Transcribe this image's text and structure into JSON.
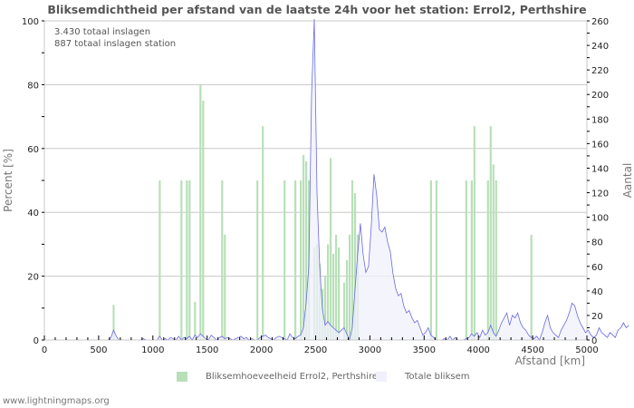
{
  "chart_data": {
    "type": "bar",
    "title": "Bliksemdichtheid per afstand van de laatste 24h voor het station: Errol2, Perthshire",
    "xlabel": "Afstand   [km]",
    "ylabel": "Percent   [%]",
    "y2label": "Aantal",
    "xlim": [
      0,
      5000
    ],
    "ylim": [
      0,
      100
    ],
    "y2lim": [
      0,
      260
    ],
    "xticks": [
      0,
      500,
      1000,
      1500,
      2000,
      2500,
      3000,
      3500,
      4000,
      4500,
      5000
    ],
    "yticks": [
      0,
      20,
      40,
      60,
      80,
      100
    ],
    "y2ticks": [
      0,
      20,
      40,
      60,
      80,
      100,
      120,
      140,
      160,
      180,
      200,
      220,
      240,
      260
    ],
    "grid": true,
    "legend_position": "bottom",
    "bin_width_km": 25,
    "annotations": [
      "3.430 totaal inslagen",
      "887 totaal inslagen station"
    ],
    "series": [
      {
        "name": "Bliksemhoeveelheid Errol2, Perthshire",
        "axis": "left",
        "kind": "bar",
        "color": "#b8e0b8",
        "values": [
          0,
          0,
          0,
          0,
          0,
          0,
          0,
          0,
          0,
          0,
          0,
          0,
          0,
          0,
          0,
          0,
          0,
          0,
          0,
          0,
          0,
          0,
          0,
          0,
          0,
          11,
          0,
          0,
          0,
          0,
          0,
          0,
          0,
          0,
          0,
          0,
          0,
          0,
          0,
          0,
          0,
          0,
          50,
          0,
          0,
          0,
          0,
          0,
          0,
          0,
          50,
          0,
          50,
          50,
          0,
          12,
          0,
          80,
          75,
          0,
          0,
          0,
          0,
          0,
          0,
          50,
          33,
          0,
          0,
          0,
          0,
          0,
          0,
          0,
          0,
          0,
          0,
          0,
          50,
          0,
          67,
          0,
          0,
          0,
          0,
          0,
          0,
          0,
          50,
          0,
          0,
          0,
          50,
          0,
          50,
          58,
          56,
          50,
          0,
          29,
          30,
          24,
          16,
          20,
          30,
          57,
          27,
          33,
          29,
          0,
          18,
          25,
          33,
          50,
          46,
          33,
          0,
          0,
          0,
          0,
          0,
          0,
          0,
          0,
          0,
          0,
          0,
          0,
          0,
          0,
          0,
          0,
          0,
          0,
          0,
          0,
          0,
          0,
          0,
          0,
          0,
          0,
          50,
          0,
          50,
          0,
          0,
          0,
          0,
          0,
          0,
          0,
          0,
          0,
          0,
          50,
          0,
          50,
          67,
          0,
          0,
          0,
          0,
          50,
          67,
          55,
          50,
          0,
          0,
          0,
          0,
          0,
          0,
          0,
          0,
          0,
          0,
          0,
          0,
          33,
          0,
          0,
          0,
          0,
          0,
          0,
          0,
          0,
          0,
          0,
          0,
          0,
          0,
          0,
          0,
          0,
          0,
          0,
          0,
          0,
          0,
          0,
          0,
          0,
          0,
          0,
          0,
          0,
          0
        ]
      },
      {
        "name": "Totale bliksem",
        "axis": "right",
        "kind": "area-line",
        "fill": "#f0f0fc",
        "line": "#6b6bdf",
        "values": [
          0,
          0,
          0,
          0,
          0,
          0,
          0,
          0,
          0,
          0,
          0,
          0,
          0,
          0,
          0,
          0,
          0,
          0,
          0,
          0,
          0,
          0,
          0,
          0,
          2,
          8,
          3,
          0,
          0,
          0,
          0,
          0,
          0,
          0,
          0,
          0,
          1,
          0,
          0,
          0,
          0,
          0,
          3,
          0,
          1,
          0,
          2,
          1,
          0,
          3,
          0,
          2,
          1,
          3,
          0,
          4,
          2,
          5,
          3,
          1,
          0,
          4,
          2,
          0,
          2,
          3,
          1,
          2,
          1,
          0,
          1,
          2,
          3,
          1,
          2,
          0,
          1,
          0,
          0,
          2,
          3,
          4,
          2,
          1,
          0,
          2,
          3,
          2,
          1,
          0,
          5,
          2,
          1,
          3,
          4,
          10,
          30,
          60,
          200,
          265,
          120,
          60,
          25,
          12,
          15,
          12,
          10,
          8,
          6,
          8,
          10,
          5,
          0,
          10,
          40,
          70,
          95,
          70,
          55,
          60,
          92,
          135,
          118,
          90,
          88,
          92,
          80,
          72,
          54,
          42,
          36,
          38,
          28,
          22,
          24,
          18,
          14,
          16,
          10,
          4,
          6,
          10,
          4,
          2,
          0,
          0,
          0,
          1,
          0,
          3,
          0,
          2,
          0,
          0,
          0,
          1,
          2,
          5,
          3,
          6,
          2,
          8,
          4,
          6,
          12,
          6,
          3,
          8,
          14,
          18,
          22,
          12,
          20,
          18,
          22,
          14,
          10,
          8,
          4,
          2,
          1,
          3,
          0,
          6,
          14,
          20,
          10,
          6,
          4,
          2,
          8,
          12,
          16,
          22,
          30,
          28,
          20,
          14,
          10,
          6,
          8,
          4,
          2,
          4,
          10,
          6,
          4,
          2,
          6,
          4,
          2,
          8,
          10,
          14,
          10,
          12
        ]
      }
    ]
  },
  "header": {
    "title": "Bliksemdichtheid per afstand van de laatste 24h voor het station: Errol2, Perthshire"
  },
  "notes": {
    "total": "3.430 totaal inslagen",
    "station": "887 totaal inslagen station"
  },
  "axes": {
    "x_label": "Afstand   [km]",
    "y_label": "Percent   [%]",
    "y2_label": "Aantal"
  },
  "legend": {
    "series1": "Bliksemhoeveelheid Errol2, Perthshire",
    "series2": "Totale bliksem",
    "color1": "#b8e0b8",
    "color2": "#f0f0fc"
  },
  "footer": {
    "text": "www.lightningmaps.org"
  }
}
